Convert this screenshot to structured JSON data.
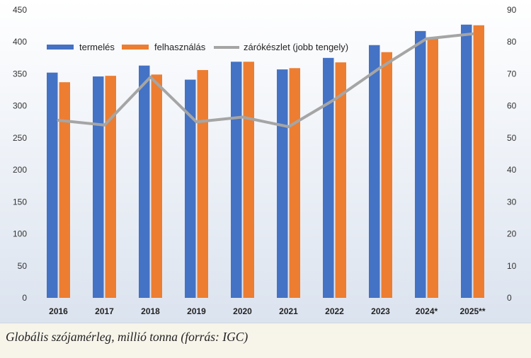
{
  "caption": "Globális szójamérleg, millió tonna (forrás: IGC)",
  "colors": {
    "production": "#4472c4",
    "consumption": "#ed7d31",
    "stock": "#a5a5a5",
    "bg_top": "#ffffff",
    "bg_bottom": "#dbe3ef"
  },
  "chart_data": {
    "type": "bar",
    "categories": [
      "2016",
      "2017",
      "2018",
      "2019",
      "2020",
      "2021",
      "2022",
      "2023",
      "2024*",
      "2025**"
    ],
    "series": [
      {
        "name": "termelés",
        "type": "bar",
        "axis": "left",
        "values": [
          352,
          346,
          363,
          341,
          369,
          357,
          375,
          395,
          417,
          427
        ]
      },
      {
        "name": "felhasználás",
        "type": "bar",
        "axis": "left",
        "values": [
          337,
          347,
          349,
          356,
          369,
          359,
          368,
          384,
          406,
          426
        ]
      },
      {
        "name": "zárókészlet (jobb tengely)",
        "type": "line",
        "axis": "right",
        "values": [
          55.5,
          54,
          69,
          55,
          56.5,
          53.5,
          62,
          72,
          81,
          82.5
        ]
      }
    ],
    "ylim": [
      0,
      450
    ],
    "yticks": [
      "0",
      "50",
      "100",
      "150",
      "200",
      "250",
      "300",
      "350",
      "400",
      "450"
    ],
    "y2lim": [
      0,
      90
    ],
    "y2ticks": [
      "0",
      "10",
      "20",
      "30",
      "40",
      "50",
      "60",
      "70",
      "80",
      "90"
    ],
    "grid": false,
    "legend_position": "top-left"
  }
}
